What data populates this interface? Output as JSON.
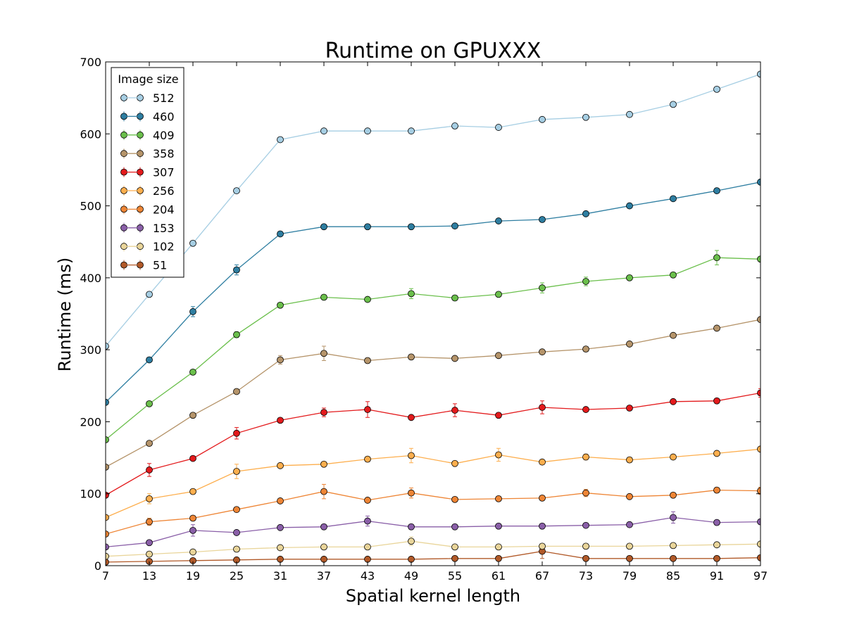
{
  "chart_data": {
    "type": "line",
    "title": "Runtime on GPUXXX",
    "xlabel": "Spatial kernel length",
    "ylabel": "Runtime (ms)",
    "x": [
      7,
      13,
      19,
      25,
      31,
      37,
      43,
      49,
      55,
      61,
      67,
      73,
      79,
      85,
      91,
      97
    ],
    "xlim": [
      7,
      97
    ],
    "ylim": [
      0,
      700
    ],
    "yticks": [
      0,
      100,
      200,
      300,
      400,
      500,
      600,
      700
    ],
    "grid": false,
    "legend": {
      "title": "Image size",
      "position": "top-left"
    },
    "series": [
      {
        "name": "512",
        "color": "#a6cee3",
        "values": [
          305,
          377,
          448,
          521,
          592,
          604,
          604,
          604,
          611,
          609,
          620,
          623,
          627,
          641,
          662,
          683
        ],
        "errors": [
          3,
          3,
          3,
          3,
          3,
          3,
          3,
          3,
          4,
          3,
          3,
          3,
          3,
          3,
          3,
          3
        ]
      },
      {
        "name": "460",
        "color": "#2e7ea1",
        "values": [
          227,
          286,
          353,
          411,
          461,
          471,
          471,
          471,
          472,
          479,
          481,
          489,
          500,
          510,
          521,
          533
        ],
        "errors": [
          3,
          3,
          7,
          7,
          3,
          3,
          3,
          3,
          3,
          3,
          3,
          3,
          3,
          3,
          3,
          3
        ]
      },
      {
        "name": "409",
        "color": "#6abf4b",
        "values": [
          175,
          225,
          269,
          321,
          362,
          373,
          370,
          378,
          372,
          377,
          386,
          395,
          400,
          404,
          428,
          426
        ],
        "errors": [
          3,
          3,
          3,
          4,
          3,
          3,
          3,
          7,
          3,
          3,
          7,
          6,
          3,
          3,
          10,
          3
        ]
      },
      {
        "name": "358",
        "color": "#b5946a",
        "values": [
          137,
          170,
          209,
          242,
          286,
          295,
          285,
          290,
          288,
          292,
          297,
          301,
          308,
          320,
          330,
          342
        ],
        "errors": [
          3,
          3,
          3,
          3,
          6,
          10,
          3,
          3,
          3,
          3,
          3,
          3,
          3,
          3,
          3,
          3
        ]
      },
      {
        "name": "307",
        "color": "#e31a1c",
        "values": [
          98,
          133,
          149,
          184,
          202,
          213,
          217,
          206,
          216,
          209,
          220,
          217,
          219,
          228,
          229,
          240
        ],
        "errors": [
          3,
          9,
          3,
          8,
          3,
          6,
          11,
          3,
          9,
          3,
          9,
          3,
          3,
          3,
          3,
          6
        ]
      },
      {
        "name": "256",
        "color": "#fdae4d",
        "values": [
          67,
          93,
          103,
          131,
          139,
          141,
          148,
          153,
          142,
          154,
          144,
          151,
          147,
          151,
          156,
          162
        ],
        "errors": [
          3,
          7,
          3,
          10,
          3,
          3,
          3,
          10,
          3,
          9,
          3,
          4,
          3,
          3,
          3,
          3
        ]
      },
      {
        "name": "204",
        "color": "#ee8535",
        "values": [
          44,
          61,
          66,
          78,
          90,
          103,
          91,
          101,
          92,
          93,
          94,
          101,
          96,
          98,
          105,
          104
        ],
        "errors": [
          3,
          5,
          3,
          3,
          3,
          10,
          3,
          7,
          3,
          3,
          3,
          5,
          3,
          3,
          3,
          5
        ]
      },
      {
        "name": "153",
        "color": "#8a5fa8",
        "values": [
          26,
          32,
          49,
          46,
          53,
          54,
          62,
          54,
          54,
          55,
          55,
          56,
          57,
          67,
          60,
          61
        ],
        "errors": [
          3,
          3,
          8,
          3,
          3,
          3,
          7,
          3,
          3,
          3,
          3,
          3,
          3,
          8,
          3,
          3
        ]
      },
      {
        "name": "102",
        "color": "#e9d59a",
        "values": [
          13,
          16,
          19,
          23,
          25,
          26,
          26,
          34,
          26,
          26,
          27,
          27,
          27,
          28,
          29,
          30
        ],
        "errors": [
          3,
          3,
          3,
          3,
          3,
          3,
          3,
          6,
          3,
          3,
          3,
          3,
          3,
          3,
          3,
          3
        ]
      },
      {
        "name": "51",
        "color": "#b15928",
        "values": [
          5,
          6,
          7,
          8,
          9,
          9,
          9,
          9,
          10,
          10,
          20,
          10,
          10,
          10,
          10,
          11
        ],
        "errors": [
          2,
          2,
          2,
          2,
          2,
          2,
          2,
          2,
          2,
          2,
          10,
          2,
          2,
          2,
          2,
          2
        ]
      }
    ]
  }
}
